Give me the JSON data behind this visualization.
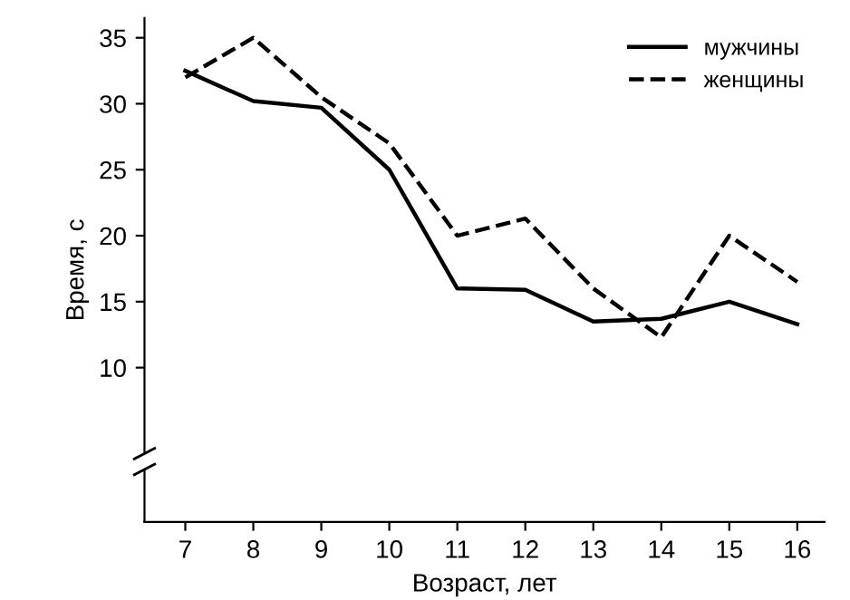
{
  "chart_data": {
    "type": "line",
    "xlabel": "Возраст, лет",
    "ylabel": "Время, с",
    "categories": [
      "7",
      "8",
      "9",
      "10",
      "11",
      "12",
      "13",
      "14",
      "15",
      "16"
    ],
    "series": [
      {
        "name": "мужчины",
        "color": "#000000",
        "line_style": "solid",
        "values": [
          32.5,
          30.2,
          29.7,
          25,
          16,
          15.9,
          13.5,
          13.7,
          15,
          13.3
        ]
      },
      {
        "name": "женщины",
        "color": "#000000",
        "line_style": "dashed",
        "values": [
          32,
          35,
          30.5,
          27,
          20,
          21.3,
          16,
          12.3,
          20,
          16.5
        ]
      }
    ],
    "ylim": [
      -1.7,
      36.5
    ],
    "yticks": [
      10,
      15,
      20,
      25,
      30,
      35
    ],
    "grid": false,
    "legend": "top right",
    "marker": "none"
  }
}
